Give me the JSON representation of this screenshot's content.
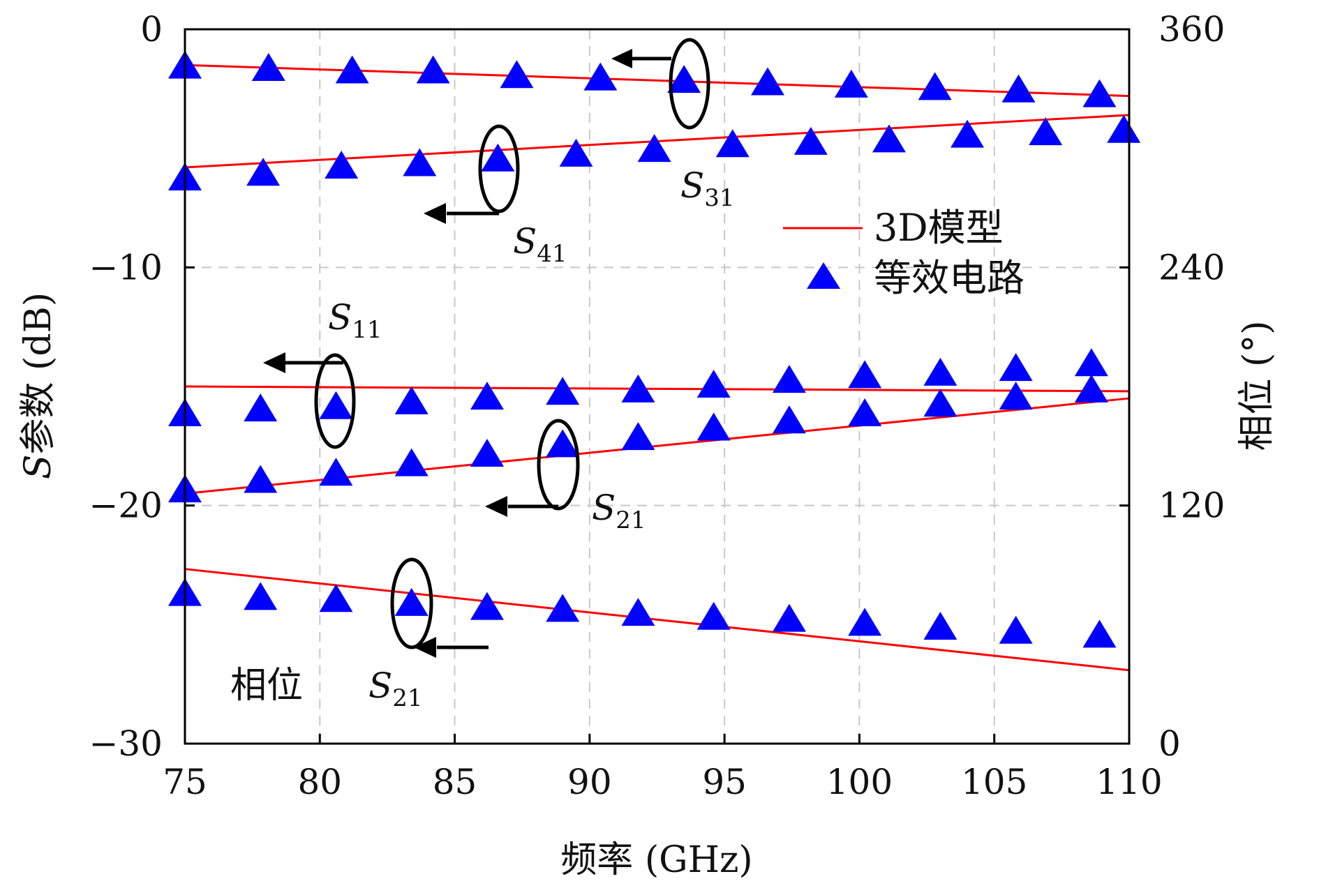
{
  "chart_data": {
    "type": "line",
    "title": "",
    "xlabel": "频率 (GHz)",
    "ylabel_left_prefix": "S",
    "ylabel_left": "参数 (dB)",
    "ylabel_right": "相位 (°)",
    "xlim": [
      75,
      110
    ],
    "ylim_left": [
      -30,
      0
    ],
    "ylim_right": [
      0,
      360
    ],
    "x_ticks": [
      "75",
      "80",
      "85",
      "90",
      "95",
      "100",
      "105",
      "110"
    ],
    "y_left_ticks": [
      "0",
      "−10",
      "−20",
      "−30"
    ],
    "y_right_ticks": [
      "360",
      "240",
      "120",
      "0"
    ],
    "grid": true,
    "legend_position": "upper-right",
    "legend": [
      {
        "label": "3D模型",
        "marker": "line",
        "color": "#ff0000"
      },
      {
        "label": "等效电路",
        "marker": "triangle",
        "color": "#0000ff"
      }
    ],
    "series": [
      {
        "name": "S31",
        "axis": "left",
        "x": [
          75,
          110
        ],
        "y": [
          -1.5,
          -2.8
        ]
      },
      {
        "name": "S41",
        "axis": "left",
        "x": [
          75,
          110
        ],
        "y": [
          -5.8,
          -3.6
        ]
      },
      {
        "name": "S11",
        "axis": "left",
        "x": [
          75,
          110
        ],
        "y": [
          -15.0,
          -15.2
        ]
      },
      {
        "name": "S21",
        "axis": "left",
        "x": [
          75,
          110
        ],
        "y": [
          -19.5,
          -15.5
        ]
      },
      {
        "name": "S21 相位",
        "axis": "right",
        "x": [
          75,
          110
        ],
        "y": [
          88,
          37
        ]
      }
    ],
    "markers": [
      {
        "name": "S31",
        "axis": "left",
        "x": [
          75,
          78.1,
          81.2,
          84.2,
          87.3,
          90.4,
          93.5,
          96.6,
          99.7,
          102.8,
          105.9,
          108.9
        ],
        "y": [
          -1.6,
          -1.7,
          -1.8,
          -1.8,
          -2.0,
          -2.1,
          -2.2,
          -2.3,
          -2.4,
          -2.5,
          -2.6,
          -2.8
        ]
      },
      {
        "name": "S41",
        "axis": "left",
        "x": [
          75,
          77.9,
          80.8,
          83.7,
          86.6,
          89.5,
          92.4,
          95.3,
          98.2,
          101.1,
          104.0,
          106.9,
          109.8
        ],
        "y": [
          -6.3,
          -6.1,
          -5.8,
          -5.7,
          -5.5,
          -5.3,
          -5.1,
          -4.9,
          -4.8,
          -4.7,
          -4.5,
          -4.4,
          -4.3
        ]
      },
      {
        "name": "S11",
        "axis": "left",
        "x": [
          75,
          77.8,
          80.6,
          83.4,
          86.2,
          89.0,
          91.8,
          94.6,
          97.4,
          100.2,
          103.0,
          105.8,
          108.6
        ],
        "y": [
          -16.2,
          -16.0,
          -15.9,
          -15.7,
          -15.5,
          -15.3,
          -15.2,
          -15.0,
          -14.8,
          -14.6,
          -14.5,
          -14.3,
          -14.1
        ]
      },
      {
        "name": "S21",
        "axis": "left",
        "x": [
          75,
          77.8,
          80.6,
          83.4,
          86.2,
          89.0,
          91.8,
          94.6,
          97.4,
          100.2,
          103.0,
          105.8,
          108.6
        ],
        "y": [
          -19.4,
          -19.0,
          -18.7,
          -18.3,
          -17.9,
          -17.5,
          -17.2,
          -16.8,
          -16.5,
          -16.2,
          -15.8,
          -15.5,
          -15.2
        ]
      },
      {
        "name": "S21 相位",
        "axis": "right",
        "x": [
          75,
          77.8,
          80.6,
          83.4,
          86.2,
          89.0,
          91.8,
          94.6,
          97.4,
          100.2,
          103.0,
          105.8,
          108.9
        ],
        "y": [
          75,
          73,
          72,
          70,
          68,
          67,
          65,
          63,
          62,
          60,
          58,
          56,
          54
        ]
      }
    ],
    "annotations": [
      {
        "text": "相位"
      },
      {
        "label": "S",
        "sub": "31"
      },
      {
        "label": "S",
        "sub": "41"
      },
      {
        "label": "S",
        "sub": "11"
      },
      {
        "label": "S",
        "sub": "21"
      },
      {
        "label": "S",
        "sub": "21"
      }
    ],
    "colors": {
      "line": "#ff0000",
      "marker": "#0000ff",
      "axis": "#000000",
      "grid": "#c8c8c8"
    }
  }
}
